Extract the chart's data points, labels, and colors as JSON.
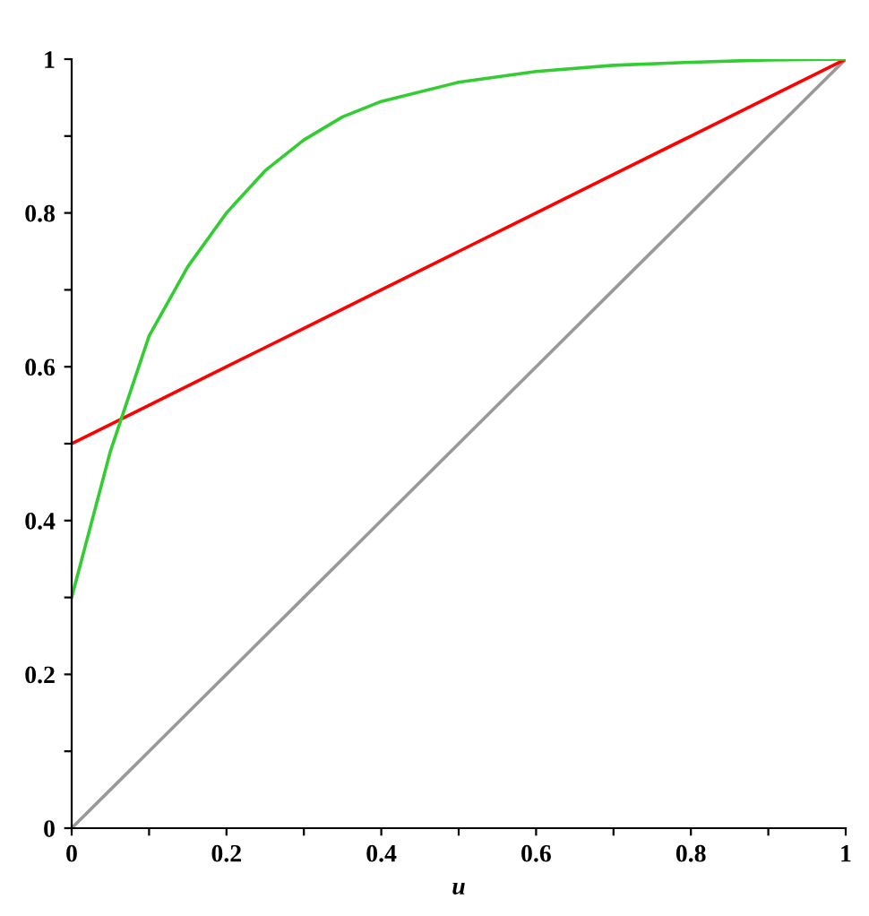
{
  "chart_data": {
    "type": "line",
    "xlabel": "u",
    "x": [
      0,
      0.05,
      0.1,
      0.15,
      0.2,
      0.25,
      0.3,
      0.35,
      0.4,
      0.5,
      0.6,
      0.7,
      0.8,
      0.9,
      1
    ],
    "series": [
      {
        "color": "#999999",
        "values": [
          0,
          0.05,
          0.1,
          0.15,
          0.2,
          0.25,
          0.3,
          0.35,
          0.4,
          0.5,
          0.6,
          0.7,
          0.8,
          0.9,
          1
        ]
      },
      {
        "color": "#ff0000",
        "values": [
          0.5,
          0.525,
          0.55,
          0.575,
          0.6,
          0.625,
          0.65,
          0.675,
          0.7,
          0.75,
          0.8,
          0.85,
          0.9,
          0.95,
          1
        ]
      },
      {
        "color": "#33cc33",
        "values": [
          0.3,
          0.49,
          0.64,
          0.73,
          0.8,
          0.855,
          0.895,
          0.925,
          0.945,
          0.97,
          0.984,
          0.992,
          0.996,
          0.999,
          1
        ]
      }
    ],
    "xlim": [
      0,
      1
    ],
    "ylim": [
      0,
      1
    ],
    "xticks": [
      0,
      {
        "value": 0.1,
        "label": null
      },
      0.2,
      {
        "value": 0.3,
        "label": null
      },
      0.4,
      {
        "value": 0.5,
        "label": null
      },
      0.6,
      {
        "value": 0.7,
        "label": null
      },
      0.8,
      {
        "value": 0.9,
        "label": null
      },
      1
    ],
    "yticks": [
      0,
      {
        "value": 0.1,
        "label": null
      },
      0.2,
      {
        "value": 0.3,
        "label": null
      },
      0.4,
      {
        "value": 0.5,
        "label": null
      },
      0.6,
      {
        "value": 0.7,
        "label": null
      },
      0.8,
      {
        "value": 0.9,
        "label": null
      },
      1
    ],
    "grid": false,
    "marker": "none",
    "line_style": "solid"
  }
}
